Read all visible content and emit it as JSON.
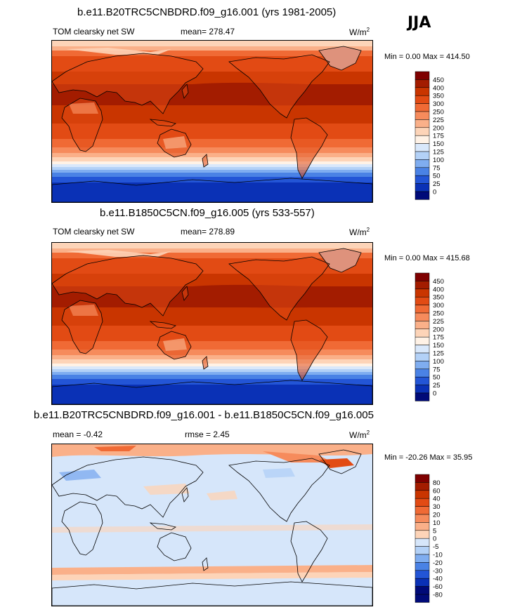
{
  "season": "JJA",
  "panels": [
    {
      "title": "b.e11.B20TRC5CNBDRD.f09_g16.001 (yrs 1981-2005)",
      "left": "TOM clearsky net SW",
      "mean": "mean= 278.47",
      "units": "W/m",
      "units_sup": "2",
      "minmax": "Min =   0.00 Max = 414.50"
    },
    {
      "title": "b.e11.B1850C5CN.f09_g16.005 (yrs 533-557)",
      "left": "TOM clearsky net SW",
      "mean": "mean= 278.89",
      "units": "W/m",
      "units_sup": "2",
      "minmax": "Min =   0.00 Max = 415.68"
    },
    {
      "title": "b.e11.B20TRC5CNBDRD.f09_g16.001 - b.e11.B1850C5CN.f09_g16.005",
      "left": "mean =  -0.42",
      "mean": "rmse =   2.45",
      "units": "W/m",
      "units_sup": "2",
      "minmax": "Min = -20.26 Max =  35.95"
    }
  ],
  "colorbars": {
    "abs": {
      "labels": [
        "450",
        "400",
        "350",
        "300",
        "250",
        "225",
        "200",
        "175",
        "150",
        "125",
        "100",
        "75",
        "50",
        "25",
        "0"
      ],
      "colors": [
        "#7f0000",
        "#a31c00",
        "#c93500",
        "#e24b14",
        "#f06a35",
        "#f68b5c",
        "#fab089",
        "#fdd4b8",
        "#fff2e6",
        "#d9e8fb",
        "#b3d1f7",
        "#7fadf0",
        "#4a82e5",
        "#2355d6",
        "#0a31b6",
        "#000a78"
      ]
    },
    "diff": {
      "labels": [
        "80",
        "60",
        "40",
        "30",
        "20",
        "10",
        "5",
        "0",
        "-5",
        "-10",
        "-20",
        "-30",
        "-40",
        "-60",
        "-80"
      ],
      "colors": [
        "#7f0000",
        "#a31c00",
        "#c93500",
        "#e24b14",
        "#f06a35",
        "#f68b5c",
        "#fab089",
        "#fdd4b8",
        "#d6e6fa",
        "#b3d1f7",
        "#7fadf0",
        "#4a82e5",
        "#2355d6",
        "#0a31b6",
        "#000a78",
        "#000a78"
      ]
    }
  }
}
